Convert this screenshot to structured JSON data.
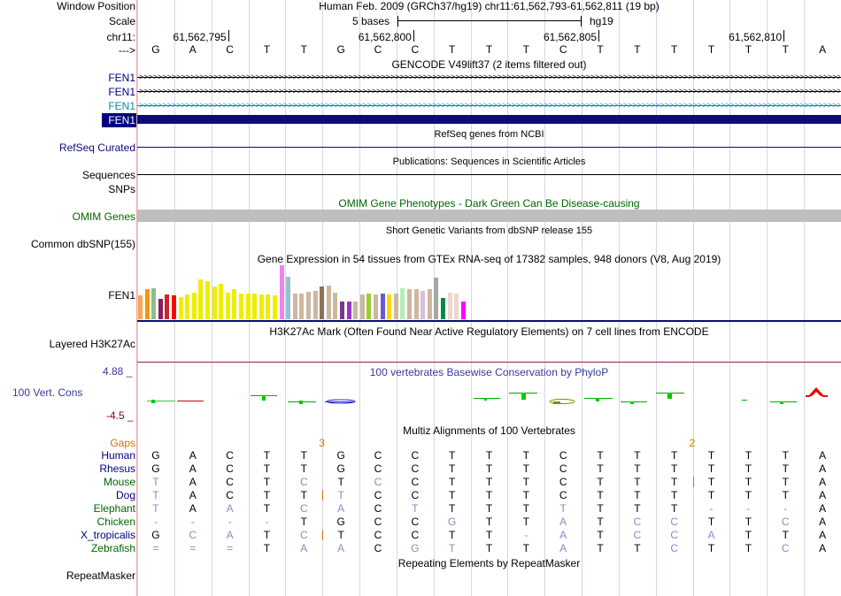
{
  "header": {
    "window_position_label": "Window Position",
    "window_position_value": "Human Feb. 2009 (GRCh37/hg19)   chr11:61,562,793-61,562,811 (19 bp)",
    "scale_label": "Scale",
    "scale_text": "5 bases",
    "scale_assembly": "hg19",
    "chrom_label": "chr11:",
    "ticks": [
      "61,562,795",
      "61,562,800",
      "61,562,805",
      "61,562,810"
    ],
    "strand_label": "--->"
  },
  "sequence": [
    "G",
    "A",
    "C",
    "T",
    "T",
    "G",
    "C",
    "C",
    "T",
    "T",
    "T",
    "C",
    "T",
    "T",
    "T",
    "T",
    "T",
    "T",
    "A"
  ],
  "gencode": {
    "title": "GENCODE V49lift37 (2 items filtered out)",
    "tracks": [
      {
        "label": "FEN1",
        "color": "#000080",
        "style": "arrows",
        "arrow_color": "#000000"
      },
      {
        "label": "FEN1",
        "color": "#000080",
        "style": "arrows",
        "arrow_color": "#000000"
      },
      {
        "label": "FEN1",
        "color": "#0b89a8",
        "style": "arrows",
        "arrow_color": "#0b89a8"
      },
      {
        "label": "FEN1",
        "color": "#ffffff",
        "style": "thick",
        "arrow_color": "#0c0c78"
      }
    ]
  },
  "refseq": {
    "title": "RefSeq genes from NCBI",
    "label": "RefSeq Curated",
    "color": "#0c0c78"
  },
  "publications": {
    "title": "Publications: Sequences in Scientific Articles",
    "label": "Sequences"
  },
  "snps_label": "SNPs",
  "omim": {
    "title": "OMIM Gene Phenotypes - Dark Green Can Be Disease-causing",
    "label": "OMIM Genes",
    "color": "#006600",
    "bar_color": "#bebebe"
  },
  "dbsnp": {
    "title": "Short Genetic Variants from dbSNP release 155",
    "label": "Common dbSNP(155)"
  },
  "gtex": {
    "title": "Gene Expression in 54 tissues from GTEx RNA-seq of 17382 samples, 948 donors (V8, Aug 2019)",
    "label": "FEN1",
    "bars": [
      {
        "v": 0.44,
        "c": "#ffa54f"
      },
      {
        "v": 0.55,
        "c": "#ee9a00"
      },
      {
        "v": 0.58,
        "c": "#8fbc8f"
      },
      {
        "v": 0.38,
        "c": "#8b1c62"
      },
      {
        "v": 0.46,
        "c": "#cd2626"
      },
      {
        "v": 0.45,
        "c": "#ff0000"
      },
      {
        "v": 0.41,
        "c": "#eeee00"
      },
      {
        "v": 0.46,
        "c": "#eeee00"
      },
      {
        "v": 0.49,
        "c": "#eeee00"
      },
      {
        "v": 0.74,
        "c": "#eeee00"
      },
      {
        "v": 0.7,
        "c": "#eeee00"
      },
      {
        "v": 0.6,
        "c": "#eeee00"
      },
      {
        "v": 0.65,
        "c": "#eeee00"
      },
      {
        "v": 0.49,
        "c": "#eeee00"
      },
      {
        "v": 0.55,
        "c": "#eeee00"
      },
      {
        "v": 0.47,
        "c": "#eeee00"
      },
      {
        "v": 0.47,
        "c": "#eeee00"
      },
      {
        "v": 0.48,
        "c": "#eeee00"
      },
      {
        "v": 0.46,
        "c": "#eeee00"
      },
      {
        "v": 0.46,
        "c": "#eeee00"
      },
      {
        "v": 0.45,
        "c": "#eeee00"
      },
      {
        "v": 1.0,
        "c": "#ee82ee"
      },
      {
        "v": 0.78,
        "c": "#9ac0cd"
      },
      {
        "v": 0.47,
        "c": "#cdb79e"
      },
      {
        "v": 0.47,
        "c": "#cdb79e"
      },
      {
        "v": 0.5,
        "c": "#cdb79e"
      },
      {
        "v": 0.52,
        "c": "#cdb79e"
      },
      {
        "v": 0.6,
        "c": "#8b7355"
      },
      {
        "v": 0.62,
        "c": "#cdb79e"
      },
      {
        "v": 0.49,
        "c": "#cdb79e"
      },
      {
        "v": 0.32,
        "c": "#7a378b"
      },
      {
        "v": 0.33,
        "c": "#9a32cd"
      },
      {
        "v": 0.33,
        "c": "#cdb79e"
      },
      {
        "v": 0.46,
        "c": "#cdb79e"
      },
      {
        "v": 0.47,
        "c": "#9acd32"
      },
      {
        "v": 0.46,
        "c": "#cdb79e"
      },
      {
        "v": 0.47,
        "c": "#6a5acd"
      },
      {
        "v": 0.46,
        "c": "#ffd700"
      },
      {
        "v": 0.47,
        "c": "#cdb79e"
      },
      {
        "v": 0.58,
        "c": "#b4eeb4"
      },
      {
        "v": 0.55,
        "c": "#cdb79e"
      },
      {
        "v": 0.56,
        "c": "#cdb79e"
      },
      {
        "v": 0.53,
        "c": "#d8bfd8"
      },
      {
        "v": 0.55,
        "c": "#cdb79e"
      },
      {
        "v": 0.77,
        "c": "#a6a6a6"
      },
      {
        "v": 0.4,
        "c": "#008b45"
      },
      {
        "v": 0.49,
        "c": "#eed5d2"
      },
      {
        "v": 0.48,
        "c": "#eed5d2"
      },
      {
        "v": 0.33,
        "c": "#ff00ff"
      }
    ]
  },
  "h3k27ac": {
    "title": "H3K27Ac Mark (Often Found Near Active Regulatory Elements) on 7 cell lines from ENCODE",
    "label": "Layered H3K27Ac"
  },
  "phylop": {
    "title": "100 vertebrates Basewise Conservation by PhyloP",
    "label": "100 Vert. Cons",
    "max": "4.88 _",
    "min": "-4.5 _",
    "title_color": "#3a3a99",
    "label_color": "#3a3a99",
    "max_color": "#3a3a99",
    "min_color": "#8b0000"
  },
  "multiz": {
    "title": "Multiz Alignments of 100 Vertebrates",
    "title_color": "#000080",
    "gaps_label": "Gaps",
    "gap_numbers": [
      {
        "col": 5,
        "text": "3"
      },
      {
        "col": 15,
        "text": "2"
      }
    ],
    "species": [
      {
        "name": "Human",
        "color": "#000080",
        "seq": [
          "G",
          "A",
          "C",
          "T",
          "T",
          "G",
          "C",
          "C",
          "T",
          "T",
          "T",
          "C",
          "T",
          "T",
          "T",
          "T",
          "T",
          "T",
          "A"
        ]
      },
      {
        "name": "Rhesus",
        "color": "#000080",
        "seq": [
          "G",
          "A",
          "C",
          "T",
          "T",
          "G",
          "C",
          "C",
          "T",
          "T",
          "T",
          "C",
          "T",
          "T",
          "T",
          "T",
          "T",
          "T",
          "A"
        ]
      },
      {
        "name": "Mouse",
        "color": "#006400",
        "seq": [
          "T",
          "A",
          "C",
          "T",
          "C",
          "T",
          "C",
          "C",
          "T",
          "T",
          "T",
          "C",
          "T",
          "T",
          "T",
          "T",
          "T",
          "T",
          "A"
        ]
      },
      {
        "name": "Dog",
        "color": "#000080",
        "seq": [
          "T",
          "A",
          "C",
          "T",
          "T",
          "T",
          "C",
          "C",
          "T",
          "T",
          "T",
          "C",
          "T",
          "T",
          "T",
          "T",
          "T",
          "T",
          "A"
        ]
      },
      {
        "name": "Elephant",
        "color": "#006400",
        "seq": [
          "T",
          "A",
          "A",
          "T",
          "C",
          "A",
          "C",
          "T",
          "T",
          "T",
          "T",
          "T",
          "T",
          "T",
          "T",
          "-",
          "-",
          "-",
          "A"
        ]
      },
      {
        "name": "Chicken",
        "color": "#006400",
        "seq": [
          "-",
          "-",
          "-",
          "-",
          "T",
          "G",
          "C",
          "C",
          "G",
          "T",
          "T",
          "A",
          "T",
          "C",
          "C",
          "T",
          "T",
          "C",
          "A"
        ]
      },
      {
        "name": "X_tropicalis",
        "color": "#000080",
        "seq": [
          "G",
          "C",
          "A",
          "T",
          "C",
          "T",
          "C",
          "C",
          "T",
          "T",
          "-",
          "A",
          "T",
          "C",
          "C",
          "A",
          "T",
          "T",
          "A"
        ]
      },
      {
        "name": "Zebrafish",
        "color": "#006400",
        "seq": [
          "=",
          "=",
          "=",
          "T",
          "A",
          "A",
          "C",
          "G",
          "T",
          "T",
          "T",
          "A",
          "T",
          "T",
          "C",
          "T",
          "T",
          "C",
          "A"
        ]
      }
    ],
    "faint_cells": [
      [],
      [],
      [
        0,
        4,
        6
      ],
      [
        0,
        5
      ],
      [
        0,
        2,
        4,
        5,
        7,
        11,
        15,
        16,
        17
      ],
      [
        0,
        1,
        2,
        3,
        8,
        11,
        13,
        14,
        17
      ],
      [
        1,
        2,
        4,
        10,
        11,
        13,
        14,
        15
      ],
      [
        0,
        1,
        2,
        4,
        5,
        7,
        8,
        11,
        14,
        17
      ]
    ]
  },
  "repeatmasker": {
    "title": "Repeating Elements by RepeatMasker",
    "label": "RepeatMasker"
  },
  "colors": {
    "gencode_label": "#000080",
    "refseq_label": "#0c0c78",
    "gaps_label": "#cc7700",
    "grid": "#d6d6ea",
    "faint_base": "#8a8ac0"
  }
}
